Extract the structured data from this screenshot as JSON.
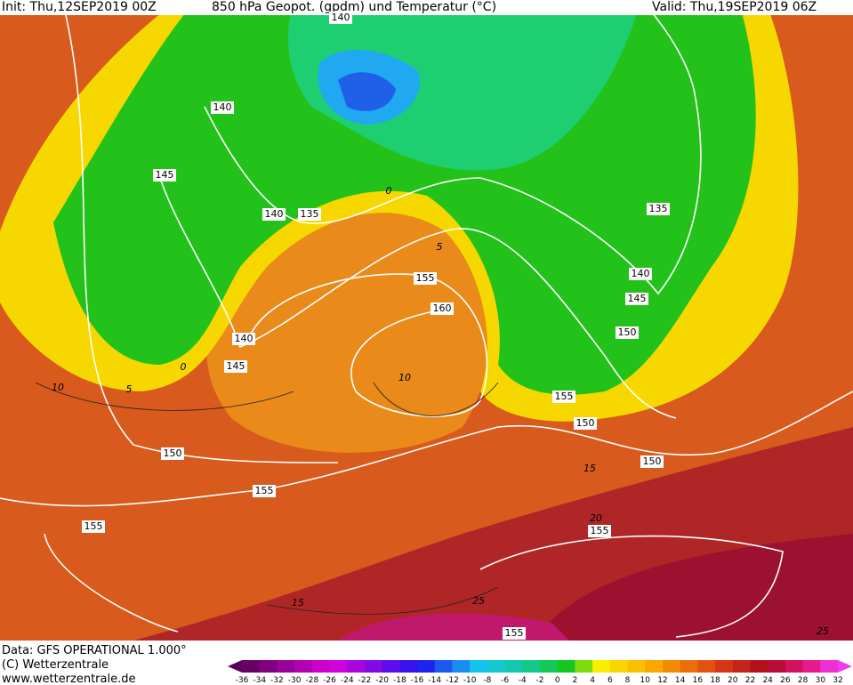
{
  "header": {
    "init": "Init: Thu,12SEP2019 00Z",
    "title": "850 hPa Geopot. (gpdm) und Temperatur (°C)",
    "valid": "Valid: Thu,19SEP2019 06Z"
  },
  "footer": {
    "data": "Data: GFS OPERATIONAL 1.000°",
    "copyright": "(C) Wetterzentrale",
    "url": "www.wetterzentrale.de"
  },
  "colorbar": {
    "labels": [
      -36,
      -34,
      -32,
      -30,
      -28,
      -26,
      -24,
      -22,
      -20,
      -18,
      -16,
      -14,
      -12,
      -10,
      -8,
      -6,
      -4,
      -2,
      0,
      2,
      4,
      6,
      8,
      10,
      12,
      14,
      16,
      18,
      20,
      22,
      24,
      26,
      28,
      30,
      32
    ]
  },
  "contour_labels": [
    "140",
    "145",
    "140",
    "135",
    "155",
    "160",
    "140",
    "145",
    "150",
    "155",
    "155",
    "155",
    "155",
    "150",
    "150",
    "155",
    "150",
    "145",
    "140",
    "135",
    "140",
    "10",
    "5",
    "0",
    "10",
    "5",
    "0",
    "15",
    "20",
    "15",
    "25",
    "25"
  ]
}
